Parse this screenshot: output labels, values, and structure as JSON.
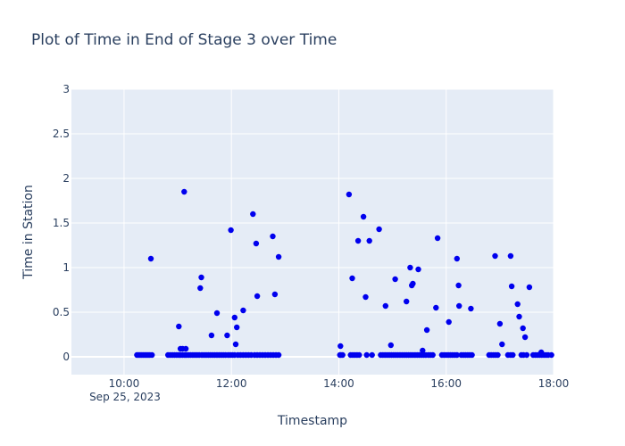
{
  "chart_data": {
    "type": "scatter",
    "title": "Plot of Time in End of Stage 3 over Time",
    "xlabel": "Timestamp",
    "ylabel": "Time in Station",
    "x_tick_labels": [
      "10:00",
      "12:00",
      "14:00",
      "16:00",
      "18:00"
    ],
    "x_tick_hours": [
      10,
      12,
      14,
      16,
      18
    ],
    "x_date_label": "Sep 25, 2023",
    "xlim_hours": [
      9.02,
      18.0
    ],
    "y_ticks": [
      0,
      0.5,
      1,
      1.5,
      2,
      2.5,
      3
    ],
    "y_tick_labels": [
      "0",
      "0.5",
      "1",
      "1.5",
      "2",
      "2.5",
      "3"
    ],
    "ylim": [
      -0.2,
      3.0
    ],
    "grid": true,
    "colors": {
      "marker": "#0000ee",
      "plot_bg": "#e5ecf6",
      "grid": "#ffffff",
      "text": "#2a3f5f"
    },
    "x_hours": [
      10.24,
      10.27,
      10.3,
      10.33,
      10.36,
      10.39,
      10.42,
      10.45,
      10.48,
      10.5,
      10.52,
      10.82,
      10.86,
      10.9,
      10.94,
      10.98,
      11.02,
      11.05,
      11.09,
      11.13,
      11.16,
      11.2,
      11.24,
      11.28,
      11.32,
      11.36,
      11.4,
      11.45,
      11.49,
      11.53,
      11.57,
      11.61,
      11.65,
      11.69,
      11.73,
      11.77,
      11.81,
      11.85,
      11.89,
      11.94,
      11.98,
      12.02,
      12.06,
      12.12,
      12.17,
      12.22,
      12.27,
      12.32,
      12.37,
      12.43,
      12.48,
      12.53,
      12.58,
      12.63,
      12.68,
      12.73,
      12.78,
      12.83,
      12.88,
      11.02,
      11.05,
      11.09,
      11.12,
      11.15,
      11.42,
      11.44,
      11.63,
      11.73,
      11.92,
      11.99,
      12.06,
      12.08,
      12.1,
      12.22,
      12.4,
      12.46,
      12.48,
      12.77,
      12.81,
      12.88,
      14.02,
      14.04,
      14.07,
      14.22,
      14.26,
      14.3,
      14.34,
      14.38,
      14.52,
      14.62,
      14.78,
      14.82,
      14.86,
      14.9,
      14.94,
      14.98,
      15.02,
      15.06,
      15.1,
      15.14,
      15.18,
      15.22,
      15.26,
      15.3,
      15.34,
      15.38,
      15.42,
      15.46,
      15.5,
      15.54,
      15.58,
      15.62,
      15.67,
      15.71,
      15.75,
      15.92,
      15.96,
      16.0,
      16.04,
      16.08,
      16.12,
      16.16,
      16.2,
      16.28,
      16.32,
      16.36,
      16.4,
      16.44,
      16.48,
      16.8,
      16.84,
      16.88,
      16.92,
      16.96,
      17.2,
      17.24,
      17.4,
      17.44,
      17.5,
      17.62,
      17.66,
      17.7,
      17.74,
      17.78,
      17.82,
      17.86,
      17.9,
      17.96,
      14.03,
      14.19,
      14.25,
      14.36,
      14.46,
      14.5,
      14.57,
      14.75,
      14.87,
      14.97,
      15.05,
      15.26,
      15.33,
      15.36,
      15.38,
      15.48,
      15.56,
      15.64,
      15.81,
      15.84,
      16.05,
      16.2,
      16.23,
      16.24,
      16.46,
      16.91,
      17.0,
      17.04,
      17.15,
      17.2,
      17.22,
      17.33,
      17.36,
      17.43,
      17.47,
      17.55,
      17.77
    ],
    "y_values": [
      0.02,
      0.02,
      0.02,
      0.02,
      0.02,
      0.02,
      0.02,
      0.02,
      0.02,
      1.1,
      0.02,
      0.02,
      0.02,
      0.02,
      0.02,
      0.02,
      0.02,
      0.02,
      0.02,
      0.02,
      0.02,
      0.02,
      0.02,
      0.02,
      0.02,
      0.02,
      0.02,
      0.02,
      0.02,
      0.02,
      0.02,
      0.02,
      0.02,
      0.02,
      0.02,
      0.02,
      0.02,
      0.02,
      0.02,
      0.02,
      0.02,
      0.02,
      0.02,
      0.02,
      0.02,
      0.02,
      0.02,
      0.02,
      0.02,
      0.02,
      0.02,
      0.02,
      0.02,
      0.02,
      0.02,
      0.02,
      0.02,
      0.02,
      0.02,
      0.34,
      0.09,
      0.09,
      1.85,
      0.09,
      0.77,
      0.89,
      0.24,
      0.49,
      0.24,
      1.42,
      0.44,
      0.14,
      0.33,
      0.52,
      1.6,
      1.27,
      0.68,
      1.35,
      0.7,
      1.12,
      0.02,
      0.02,
      0.02,
      0.02,
      0.02,
      0.02,
      0.02,
      0.02,
      0.02,
      0.02,
      0.02,
      0.02,
      0.02,
      0.02,
      0.02,
      0.02,
      0.02,
      0.02,
      0.02,
      0.02,
      0.02,
      0.02,
      0.02,
      0.02,
      0.02,
      0.02,
      0.02,
      0.02,
      0.02,
      0.02,
      0.02,
      0.02,
      0.02,
      0.02,
      0.02,
      0.02,
      0.02,
      0.02,
      0.02,
      0.02,
      0.02,
      0.02,
      0.02,
      0.02,
      0.02,
      0.02,
      0.02,
      0.02,
      0.02,
      0.02,
      0.02,
      0.02,
      0.02,
      0.02,
      0.02,
      0.02,
      0.02,
      0.02,
      0.02,
      0.02,
      0.02,
      0.02,
      0.02,
      0.02,
      0.02,
      0.02,
      0.02,
      0.02,
      0.12,
      1.82,
      0.88,
      1.3,
      1.57,
      0.67,
      1.3,
      1.43,
      0.57,
      0.13,
      0.87,
      0.62,
      1.0,
      0.8,
      0.82,
      0.98,
      0.07,
      0.3,
      0.55,
      1.33,
      0.39,
      1.1,
      0.8,
      0.57,
      0.54,
      1.13,
      0.37,
      0.14,
      0.02,
      1.13,
      0.79,
      0.59,
      0.45,
      0.32,
      0.22,
      0.78,
      0.05
    ]
  }
}
